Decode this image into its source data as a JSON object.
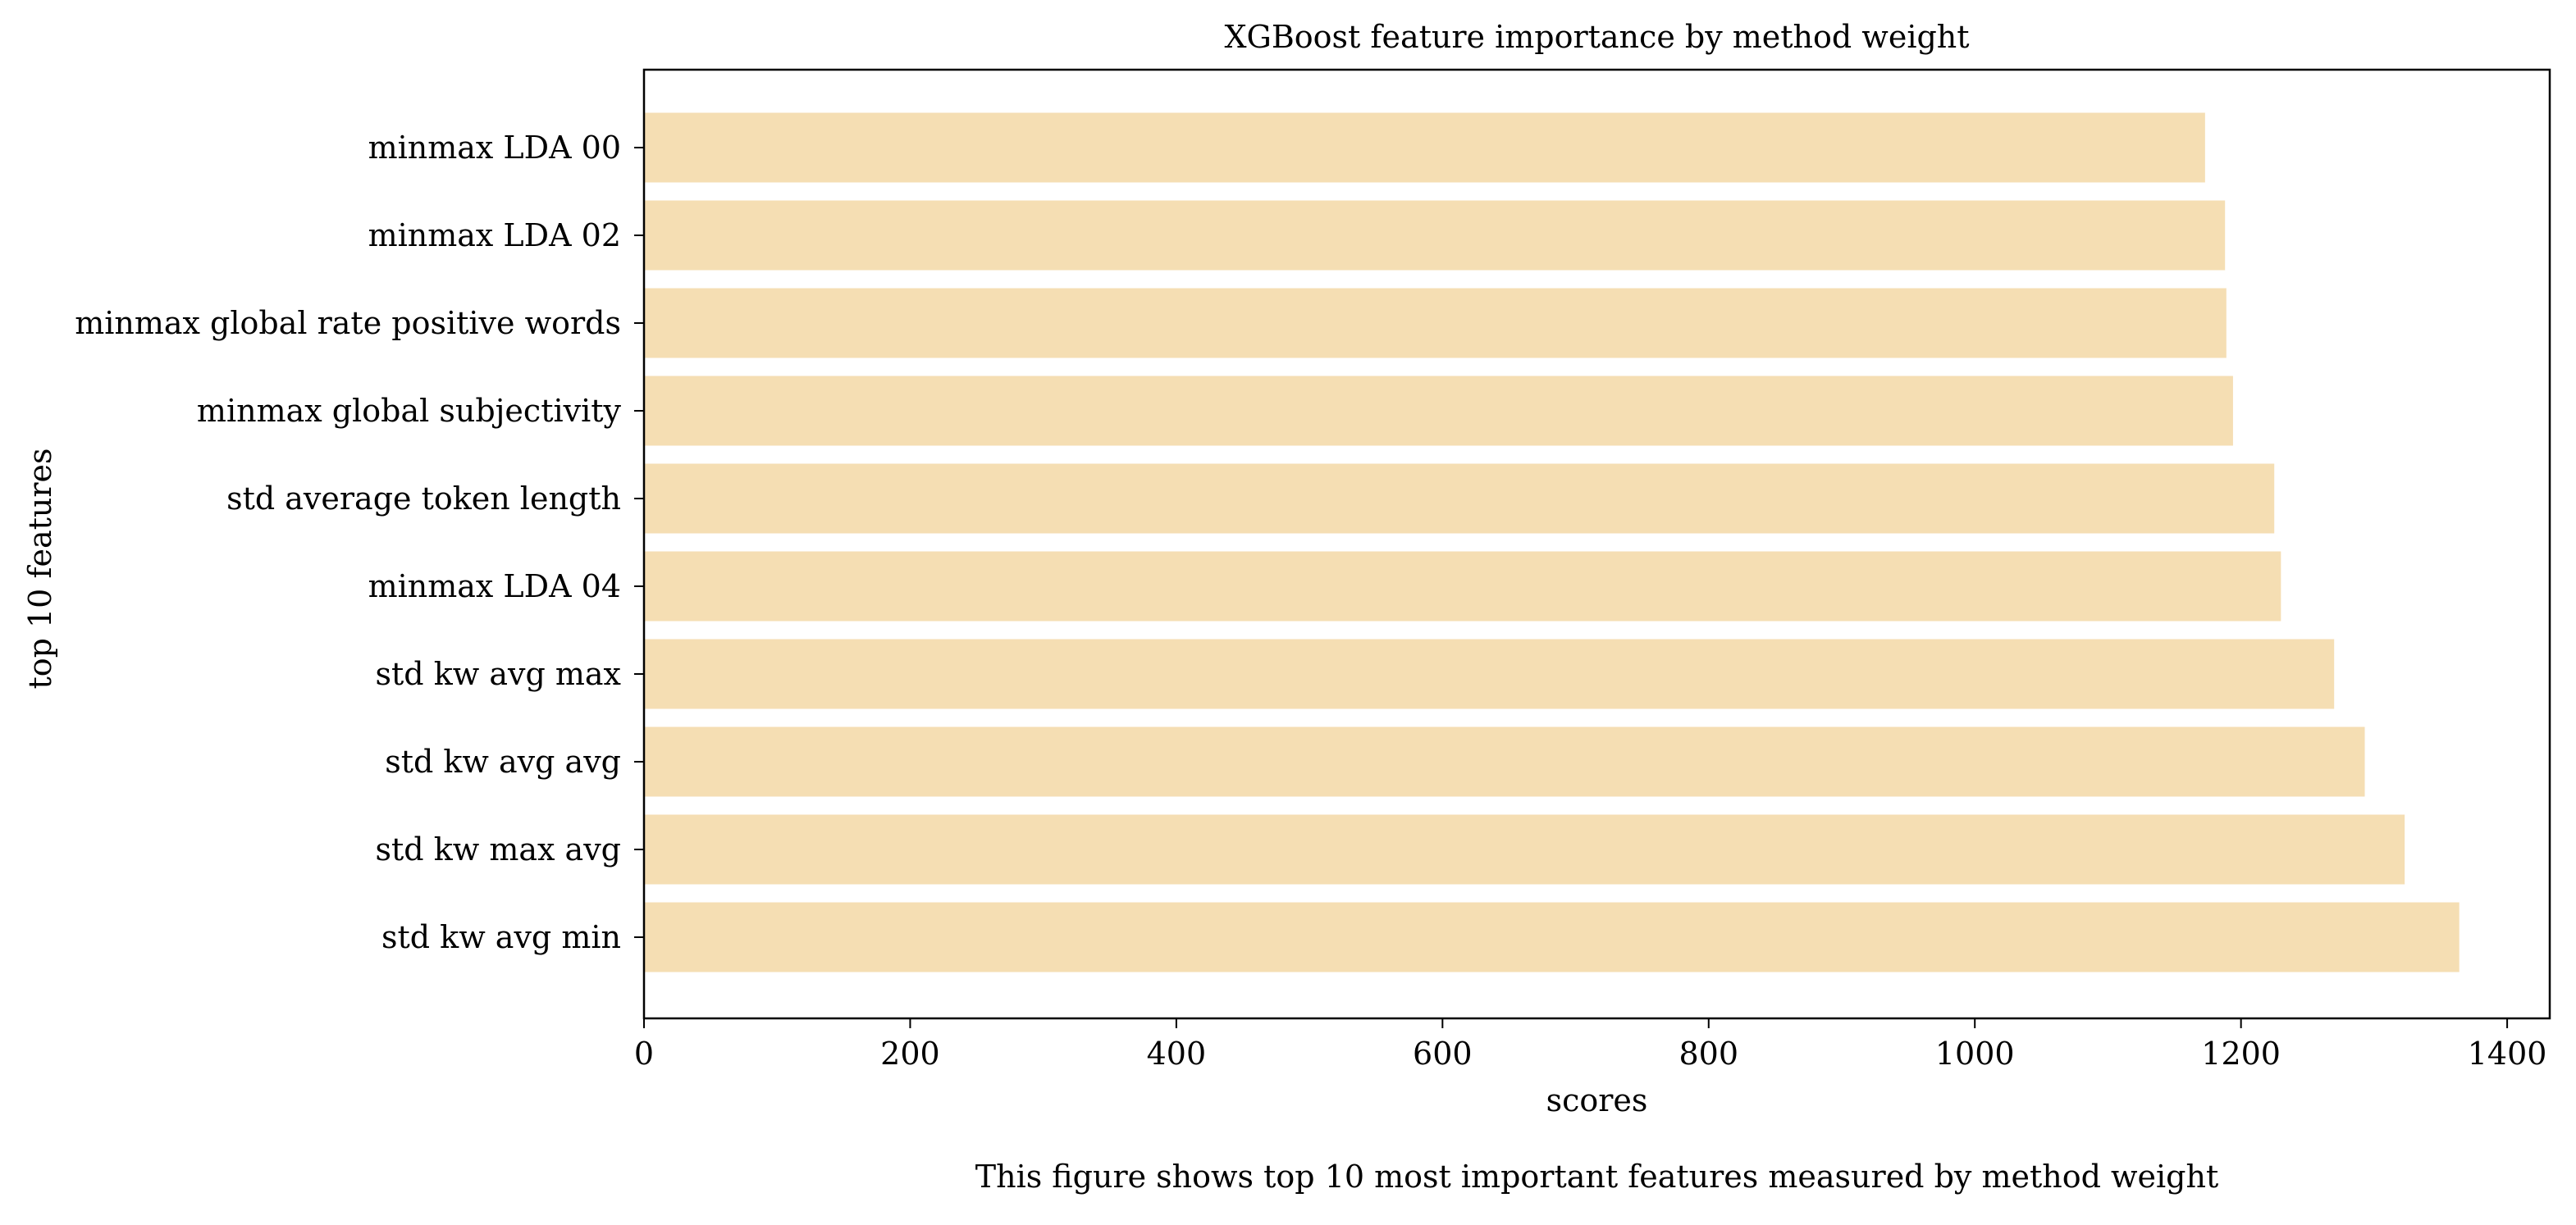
{
  "chart_data": {
    "type": "bar",
    "orientation": "horizontal",
    "title": "XGBoost feature importance by method weight",
    "xlabel": "scores",
    "ylabel": "top 10 features",
    "caption": "This figure shows top 10 most important features measured by method weight",
    "categories": [
      "minmax__LDA_00",
      "minmax__LDA_02",
      "minmax__global_rate_positive_words",
      "minmax__global_subjectivity",
      "std__average_token_length",
      "minmax__LDA_04",
      "std__kw_avg_max",
      "std__kw_avg_avg",
      "std__kw_max_avg",
      "std__kw_avg_min"
    ],
    "category_labels": [
      "minmax  LDA 00",
      "minmax  LDA 02",
      "minmax  global rate positive words",
      "minmax  global subjectivity",
      "std  average token length",
      "minmax  LDA 04",
      "std  kw avg max",
      "std  kw avg avg",
      "std  kw max avg",
      "std  kw avg min"
    ],
    "values": [
      1173,
      1188,
      1189,
      1194,
      1225,
      1230,
      1270,
      1293,
      1323,
      1364
    ],
    "xlim": [
      0,
      1432
    ],
    "xticks": [
      0,
      200,
      400,
      600,
      800,
      1000,
      1200,
      1400
    ],
    "grid": false,
    "legend": "none",
    "bar_color": "#F5DEB3"
  }
}
